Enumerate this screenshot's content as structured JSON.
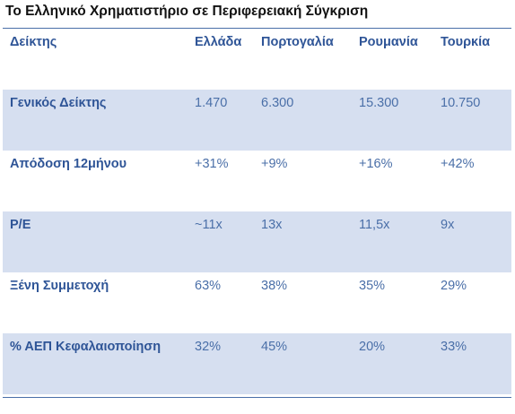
{
  "title": "Το Ελληνικό Χρηματιστήριο σε Περιφερειακή Σύγκριση",
  "colors": {
    "header_text": "#2f5597",
    "cell_text": "#4a6fa8",
    "shaded_row": "#d6dff0",
    "rule": "#4a6fa8"
  },
  "table": {
    "headers": [
      "Δείκτης",
      "Ελλάδα",
      "Πορτογαλία",
      "Ρουμανία",
      "Τουρκία"
    ],
    "rows": [
      {
        "label": "Γενικός Δείκτης",
        "values": [
          "1.470",
          "6.300",
          "15.300",
          "10.750"
        ]
      },
      {
        "label": "Απόδοση 12μήνου",
        "values": [
          "+31%",
          "+9%",
          "+16%",
          "+42%"
        ]
      },
      {
        "label": "P/E",
        "values": [
          "~11x",
          "13x",
          "11,5x",
          "9x"
        ]
      },
      {
        "label": "Ξένη Συμμετοχή",
        "values": [
          "63%",
          "38%",
          "35%",
          "29%"
        ]
      },
      {
        "label": "% ΑΕΠ Κεφαλαιοποίηση",
        "values": [
          "32%",
          "45%",
          "20%",
          "33%"
        ]
      }
    ]
  }
}
